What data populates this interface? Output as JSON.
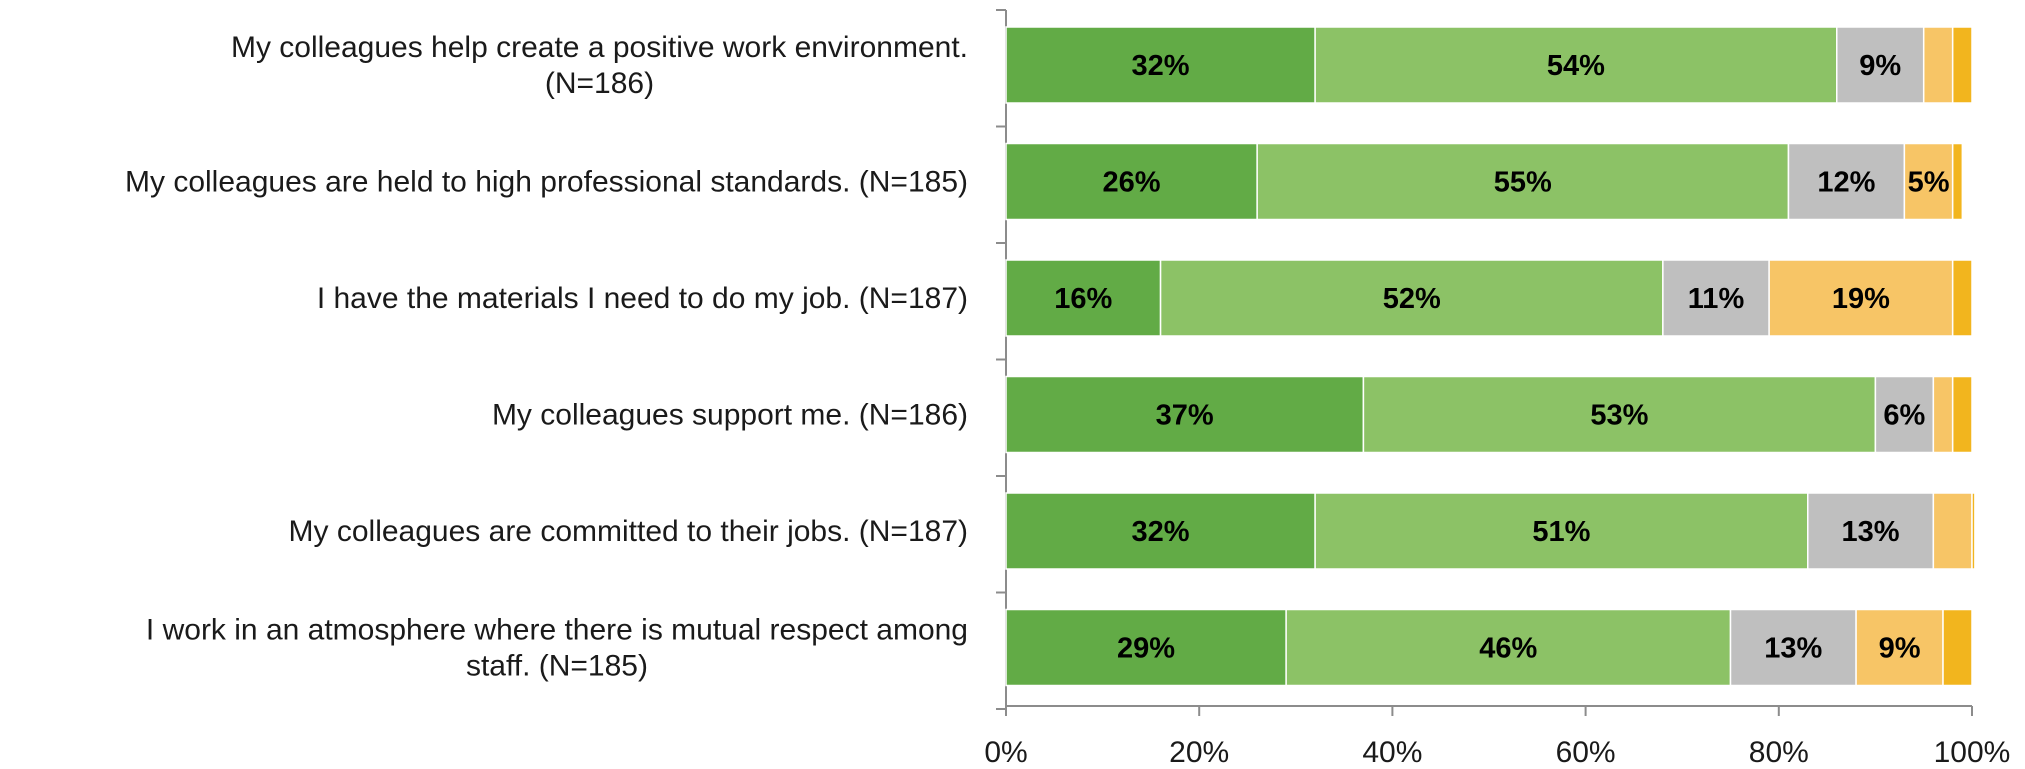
{
  "chart_data": {
    "type": "bar",
    "orientation": "horizontal",
    "stacked": true,
    "categories": [
      [
        "My colleagues help create a positive work environment.",
        "(N=186)"
      ],
      [
        "My colleagues are held to high professional standards. (N=185)"
      ],
      [
        "I have the materials I need to do my job. (N=187)"
      ],
      [
        "My colleagues support me. (N=186)"
      ],
      [
        "My colleagues are committed to their jobs. (N=187)"
      ],
      [
        "I work in an atmosphere where there is mutual respect among",
        "staff. (N=185)"
      ]
    ],
    "series": [
      {
        "color": "#62ab46",
        "values": [
          32,
          26,
          16,
          37,
          32,
          29
        ],
        "labels": [
          "32%",
          "26%",
          "16%",
          "37%",
          "32%",
          "29%"
        ]
      },
      {
        "color": "#8cc266",
        "values": [
          54,
          55,
          52,
          53,
          51,
          46
        ],
        "labels": [
          "54%",
          "55%",
          "52%",
          "53%",
          "51%",
          "46%"
        ]
      },
      {
        "color": "#bfbfbf",
        "values": [
          9,
          12,
          11,
          6,
          13,
          13
        ],
        "labels": [
          "9%",
          "12%",
          "11%",
          "6%",
          "13%",
          "13%"
        ]
      },
      {
        "color": "#f7c566",
        "values": [
          3,
          5,
          19,
          2,
          4,
          9
        ],
        "labels": [
          "",
          "5%",
          "19%",
          "",
          "",
          "9%"
        ]
      },
      {
        "color": "#f2b51e",
        "values": [
          2,
          1,
          2,
          2,
          0.3,
          3
        ],
        "labels": [
          "",
          "",
          "",
          "",
          "",
          ""
        ]
      }
    ],
    "xlim": [
      0,
      100
    ],
    "xticks": [
      "0%",
      "20%",
      "40%",
      "60%",
      "80%",
      "100%"
    ],
    "grid": false,
    "legend": null
  }
}
